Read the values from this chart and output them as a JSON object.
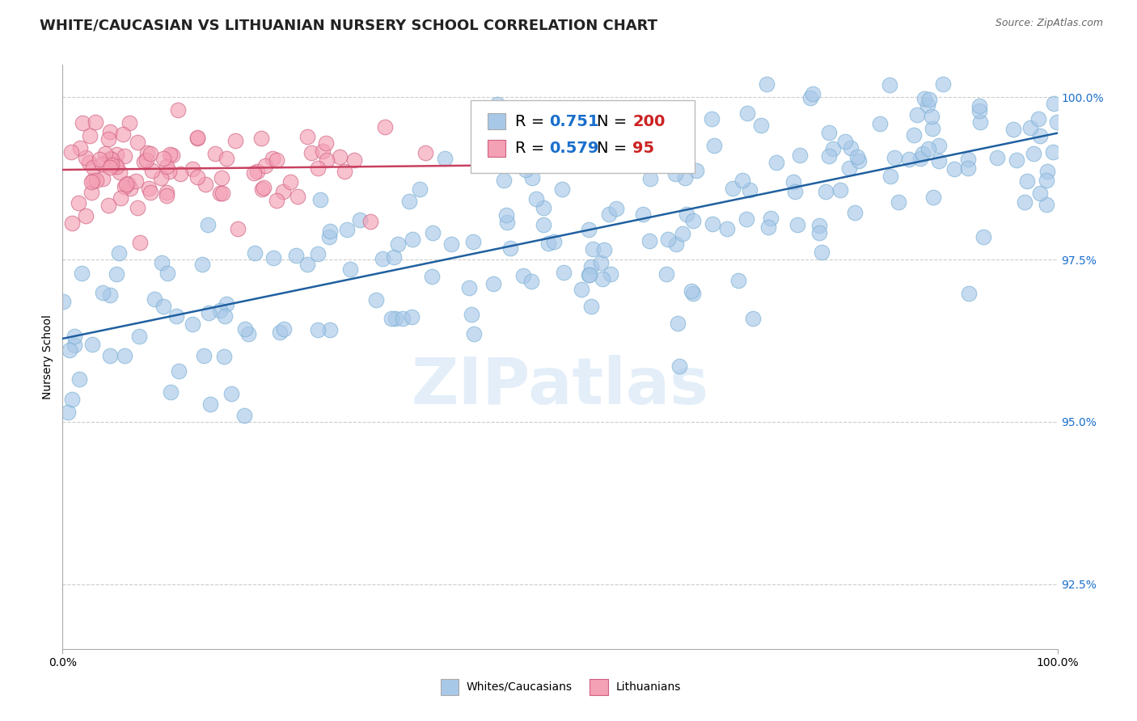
{
  "title": "WHITE/CAUCASIAN VS LITHUANIAN NURSERY SCHOOL CORRELATION CHART",
  "source_text": "Source: ZipAtlas.com",
  "ylabel": "Nursery School",
  "bg_color": "#ffffff",
  "grid_color": "#cccccc",
  "watermark": "ZIPatlas",
  "blue_color": "#a8c8e8",
  "blue_edge_color": "#7aafd4",
  "blue_line_color": "#2060a0",
  "pink_color": "#f4a0b5",
  "pink_edge_color": "#d06080",
  "pink_line_color": "#c84060",
  "R_blue": 0.751,
  "N_blue": 200,
  "R_pink": 0.579,
  "N_pink": 95,
  "legend_R_color": "#1a6fcc",
  "legend_N_color": "#cc2222",
  "xmin": 0.0,
  "xmax": 1.0,
  "ymin": 0.915,
  "ymax": 1.005,
  "yticks": [
    0.925,
    0.95,
    0.975,
    1.0
  ],
  "ytick_labels": [
    "92.5%",
    "95.0%",
    "97.5%",
    "100.0%"
  ],
  "title_fontsize": 13,
  "axis_label_fontsize": 10,
  "tick_fontsize": 10,
  "legend_fontsize": 14,
  "blue_seed": 12,
  "pink_seed": 99
}
